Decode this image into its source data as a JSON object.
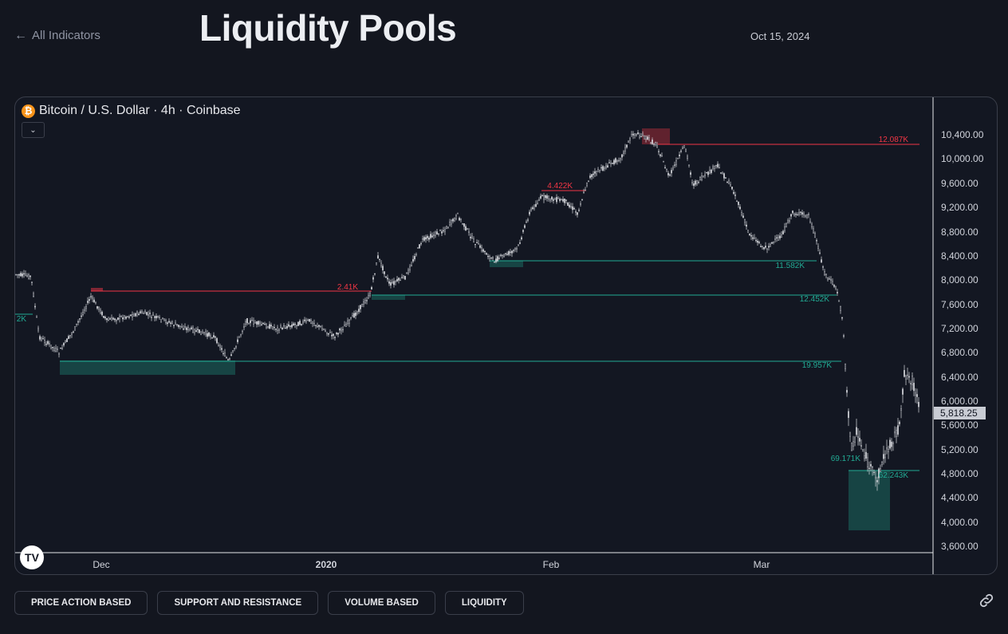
{
  "nav": {
    "back_label": "All Indicators"
  },
  "page": {
    "title": "Liquidity Pools",
    "date": "Oct 15, 2024"
  },
  "chart": {
    "symbol": "Bitcoin / U.S. Dollar · 4h · Coinbase",
    "symbol_icon": "₿",
    "price_axis": [
      "10,400.00",
      "10,000.00",
      "9,600.00",
      "9,200.00",
      "8,800.00",
      "8,400.00",
      "8,000.00",
      "7,600.00",
      "7,200.00",
      "6,800.00",
      "6,400.00",
      "6,000.00",
      "5,600.00",
      "5,200.00",
      "4,800.00",
      "4,400.00",
      "4,000.00",
      "3,600.00"
    ],
    "last_price": "5,818.25",
    "time_axis": [
      "Dec",
      "2020",
      "Feb",
      "Mar"
    ],
    "pool_labels": [
      "12.087K",
      "4.422K",
      "2.41K",
      "11.582K",
      "12.452K",
      "19.957K",
      "69.171K",
      "62.243K",
      "2K"
    ],
    "colors": {
      "sell_side": "#f23645",
      "buy_side": "#22ab94",
      "candle": "#d9dbe0"
    }
  },
  "tabs": [
    "PRICE ACTION BASED",
    "SUPPORT AND RESISTANCE",
    "VOLUME BASED",
    "LIQUIDITY"
  ]
}
